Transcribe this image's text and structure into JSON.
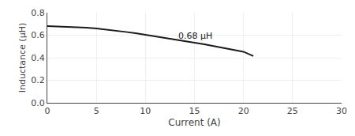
{
  "chart_data": {
    "type": "line",
    "xlabel": "Current (A)",
    "ylabel": "Inductance (μH)",
    "x": [
      0,
      1,
      2,
      3,
      4,
      5,
      6,
      7,
      8,
      9,
      10,
      11,
      12,
      13,
      14,
      15,
      16,
      17,
      18,
      19,
      20,
      21
    ],
    "values": [
      0.68,
      0.678,
      0.675,
      0.672,
      0.667,
      0.66,
      0.651,
      0.641,
      0.629,
      0.617,
      0.604,
      0.591,
      0.577,
      0.563,
      0.549,
      0.534,
      0.519,
      0.503,
      0.487,
      0.47,
      0.453,
      0.415
    ],
    "color": "#1a1a1a",
    "xlim": [
      0,
      30
    ],
    "ylim": [
      0,
      0.8
    ],
    "xticks": [
      0,
      5,
      10,
      15,
      20,
      25,
      30
    ],
    "yticks": [
      {
        "value": 0,
        "label": "0.0"
      },
      0.2,
      0.4,
      0.6,
      0.8
    ],
    "annotations": [
      {
        "text": "0.68 μH",
        "x": 13.2,
        "y": 0.595
      }
    ],
    "grid": true
  }
}
